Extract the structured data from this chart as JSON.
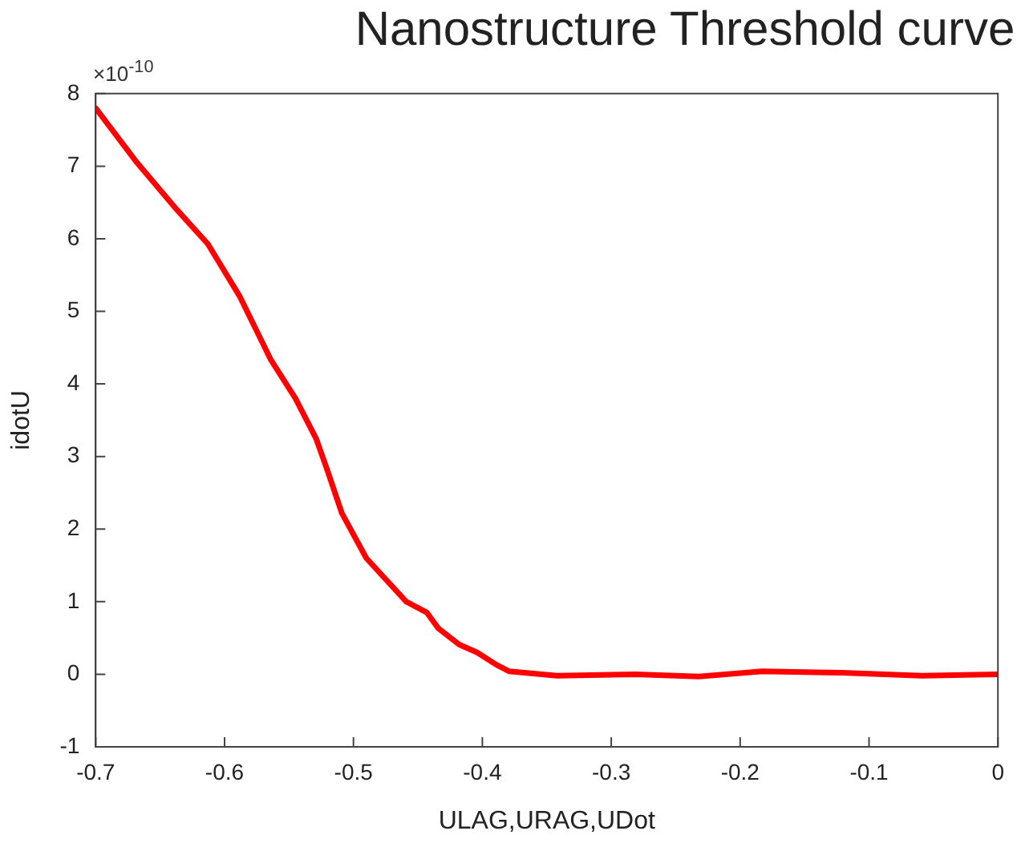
{
  "chart_data": {
    "type": "line",
    "title": "Nanostructure Threshold curve",
    "xlabel": "ULAG,URAG,UDot",
    "ylabel": "idotU",
    "annotations": [
      "×10$^{-10}$"
    ],
    "x": [
      -0.7,
      -0.668,
      -0.637,
      -0.613,
      -0.588,
      -0.564,
      -0.545,
      -0.529,
      -0.52,
      -0.509,
      -0.49,
      -0.459,
      -0.443,
      -0.434,
      -0.418,
      -0.404,
      -0.389,
      -0.379,
      -0.342,
      -0.281,
      -0.232,
      -0.183,
      -0.121,
      -0.059,
      0
    ],
    "series": [
      {
        "color": "#ff0000",
        "values": [
          7.8,
          7.05,
          6.4,
          5.93,
          5.2,
          4.33,
          3.8,
          3.25,
          2.8,
          2.22,
          1.6,
          1.0,
          0.85,
          0.63,
          0.41,
          0.3,
          0.13,
          0.04,
          -0.02,
          0.0,
          -0.03,
          0.04,
          0.02,
          -0.02,
          0
        ]
      }
    ],
    "xlim": [
      -0.7,
      0
    ],
    "xticks": [
      -0.7,
      -0.6,
      -0.5,
      -0.4,
      -0.3,
      -0.2,
      -0.1,
      0
    ],
    "ylim": [
      -1,
      8
    ],
    "yticks": [
      -1,
      0,
      1,
      2,
      3,
      4,
      5,
      6,
      7,
      8
    ],
    "grid": false,
    "legend": false,
    "marker": "none",
    "line_style": "solid"
  }
}
